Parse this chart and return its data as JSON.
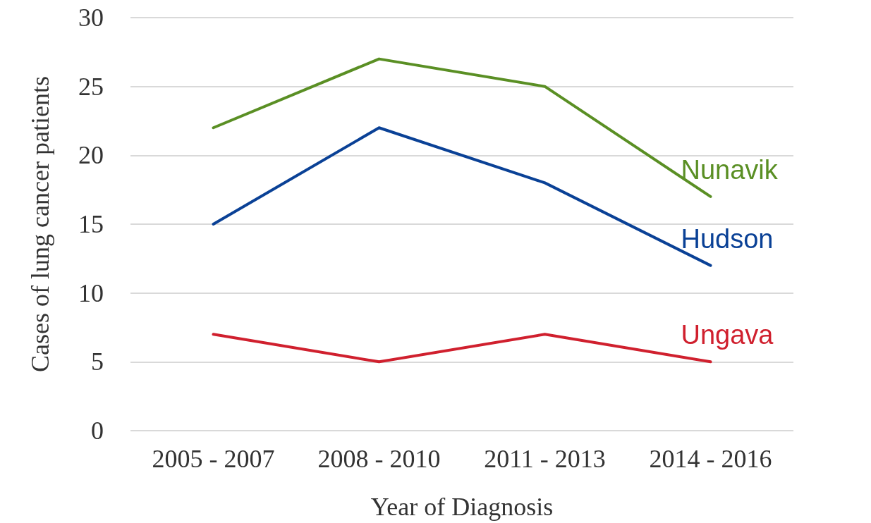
{
  "chart_data": {
    "type": "line",
    "xlabel": "Year of Diagnosis",
    "ylabel": "Cases of lung cancer patients",
    "categories": [
      "2005 - 2007",
      "2008 - 2010",
      "2011 - 2013",
      "2014 - 2016"
    ],
    "series": [
      {
        "name": "Nunavik",
        "color": "#5a8f24",
        "values": [
          22,
          27,
          25,
          17
        ]
      },
      {
        "name": "Hudson",
        "color": "#0a4196",
        "values": [
          15,
          22,
          18,
          12
        ]
      },
      {
        "name": "Ungava",
        "color": "#d0202e",
        "values": [
          7,
          5,
          7,
          5
        ]
      }
    ],
    "ylim": [
      0,
      30
    ],
    "yticks": [
      0,
      5,
      10,
      15,
      20,
      25,
      30
    ],
    "grid": "y",
    "legend": false,
    "marker": "none",
    "line_style": "solid"
  }
}
